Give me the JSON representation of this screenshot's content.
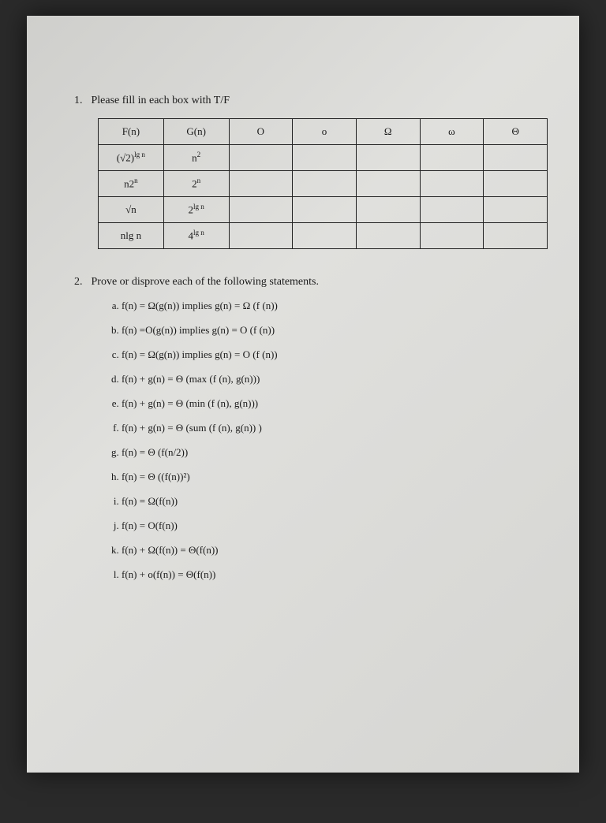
{
  "q1": {
    "number": "1.",
    "prompt": "Please fill in each box with T/F",
    "headers": [
      "F(n)",
      "G(n)",
      "O",
      "o",
      "Ω",
      "ω",
      "Θ"
    ],
    "rows": [
      {
        "f": "(√2)<sup>lg n</sup>",
        "g": "n<sup>2</sup>"
      },
      {
        "f": "n2<sup>n</sup>",
        "g": "2<sup>n</sup>"
      },
      {
        "f": "√n",
        "g": "2<sup>lg n</sup>"
      },
      {
        "f": "nlg n",
        "g": "4<sup>lg n</sup>"
      }
    ]
  },
  "q2": {
    "number": "2.",
    "prompt": "Prove or disprove each of the following statements.",
    "items": [
      "f(n) = Ω(g(n)) implies g(n) = Ω (f (n))",
      "f(n) =O(g(n)) implies g(n) = O (f (n))",
      "f(n) = Ω(g(n)) implies g(n) = O (f (n))",
      "f(n) + g(n) = Θ (max (f (n), g(n)))",
      "f(n) + g(n) = Θ (min (f (n), g(n)))",
      "f(n) + g(n) = Θ (sum (f (n), g(n)) )",
      "f(n) = Θ (f(n/2))",
      "f(n) = Θ ((f(n))²)",
      "f(n) = Ω(f(n))",
      "f(n) = O(f(n))",
      "f(n) + Ω(f(n)) = Θ(f(n))",
      "f(n) + o(f(n)) = Θ(f(n))"
    ]
  }
}
